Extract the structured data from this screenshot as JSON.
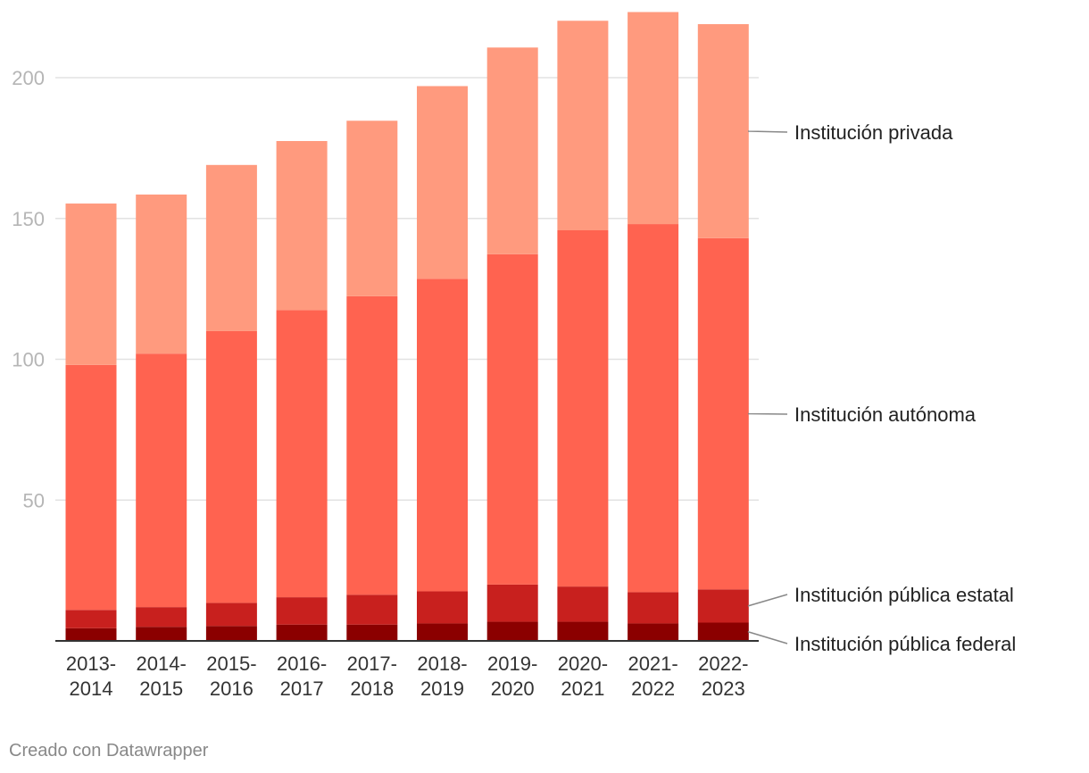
{
  "chart_data": {
    "type": "bar",
    "stacked": true,
    "categories": [
      [
        "2013-",
        "2014"
      ],
      [
        "2014-",
        "2015"
      ],
      [
        "2015-",
        "2016"
      ],
      [
        "2016-",
        "2017"
      ],
      [
        "2017-",
        "2018"
      ],
      [
        "2018-",
        "2019"
      ],
      [
        "2019-",
        "2020"
      ],
      [
        "2020-",
        "2021"
      ],
      [
        "2021-",
        "2022"
      ],
      [
        "2022-",
        "2023"
      ]
    ],
    "series": [
      {
        "name": "Institución pública federal",
        "color": "#8b0000",
        "values": [
          4.5,
          5,
          5.3,
          5.8,
          5.8,
          6.2,
          6.8,
          6.8,
          6.2,
          6.5
        ]
      },
      {
        "name": "Institución pública estatal",
        "color": "#c8201e",
        "values": [
          6.5,
          7,
          8.2,
          9.7,
          10.6,
          11.4,
          13.2,
          12.5,
          11.1,
          11.8
        ]
      },
      {
        "name": "Institución autónoma",
        "color": "#ff6350",
        "values": [
          87,
          90,
          96.5,
          102,
          106,
          111,
          117.3,
          126.5,
          130.7,
          124.7
        ]
      },
      {
        "name": "Institución privada",
        "color": "#ff9a7e",
        "values": [
          57.3,
          56.5,
          59,
          60,
          62.3,
          68.4,
          73.4,
          74.4,
          75.3,
          76
        ]
      }
    ],
    "yticks": [
      50,
      100,
      150,
      200
    ],
    "ylim": [
      0,
      225
    ],
    "title": "",
    "xlabel": "",
    "ylabel": ""
  },
  "credit": "Creado con Datawrapper"
}
